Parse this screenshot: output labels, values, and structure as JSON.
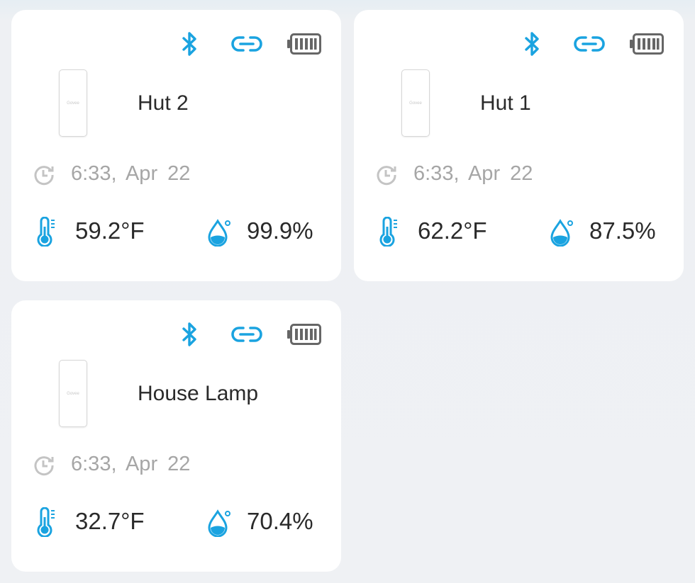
{
  "colors": {
    "accent": "#1aa3e0",
    "battery": "#666666",
    "muted": "#a6a6a6"
  },
  "icons": {
    "connection": "bluetooth-icon",
    "link": "link-icon",
    "battery": "battery-full-icon",
    "updated": "clock-history-icon",
    "temperature": "thermometer-icon",
    "humidity": "water-drop-icon"
  },
  "devices": [
    {
      "name": "Hut 2",
      "brand": "Govee",
      "time": "6:33,",
      "date": "Apr 22",
      "temperature": "59.2°F",
      "humidity": "99.9%"
    },
    {
      "name": "Hut 1",
      "brand": "Govee",
      "time": "6:33,",
      "date": "Apr 22",
      "temperature": "62.2°F",
      "humidity": "87.5%"
    },
    {
      "name": "House Lamp",
      "brand": "Govee",
      "time": "6:33,",
      "date": "Apr 22",
      "temperature": "32.7°F",
      "humidity": "70.4%"
    }
  ]
}
